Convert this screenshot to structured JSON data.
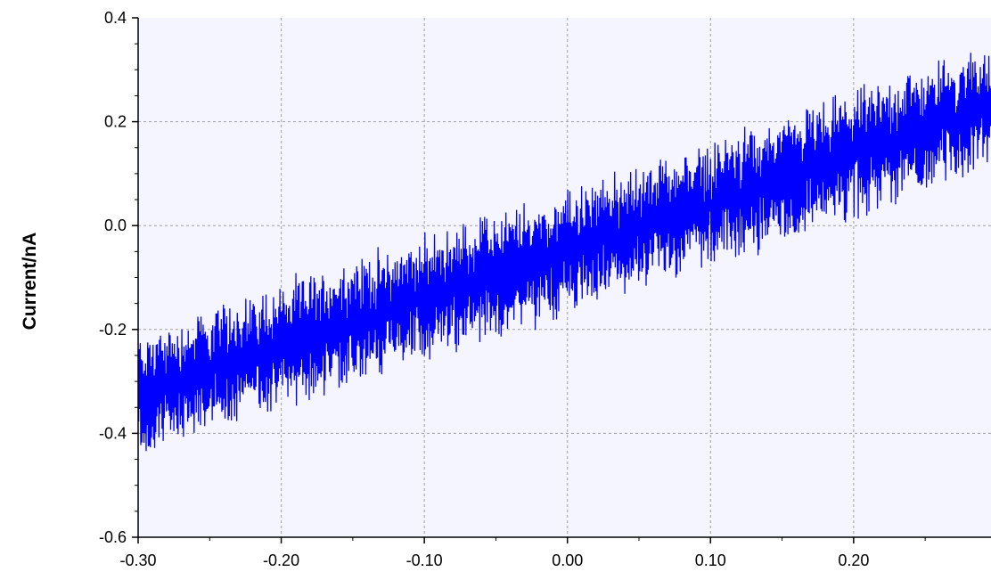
{
  "chart_data": {
    "type": "line",
    "title": "",
    "xlabel": "",
    "ylabel": "Current/nA",
    "xlim": [
      -0.3,
      0.296
    ],
    "ylim": [
      -0.6,
      0.4
    ],
    "x_ticks": [
      -0.3,
      -0.2,
      -0.1,
      0.0,
      0.1,
      0.2
    ],
    "x_tick_labels": [
      "-0.30",
      "-0.20",
      "-0.10",
      "0.00",
      "0.10",
      "0.20"
    ],
    "y_ticks": [
      -0.6,
      -0.4,
      -0.2,
      0.0,
      0.2,
      0.4
    ],
    "y_tick_labels": [
      "-0.6",
      "-0.4",
      "-0.2",
      "0.0",
      "0.2",
      "0.4"
    ],
    "grid": true,
    "legend": "none",
    "series": [
      {
        "color": "#0000ff",
        "trend": {
          "x": [
            -0.3,
            -0.2,
            -0.1,
            0.0,
            0.1,
            0.2,
            0.296
          ],
          "y": [
            -0.33,
            -0.23,
            -0.14,
            -0.05,
            0.04,
            0.14,
            0.23
          ]
        },
        "noise_amplitude": 0.12
      }
    ],
    "colors": {
      "plot_background": "#f5f5ff",
      "grid": "#a0a0a0",
      "axis": "#000000",
      "series": "#0000ff"
    }
  }
}
